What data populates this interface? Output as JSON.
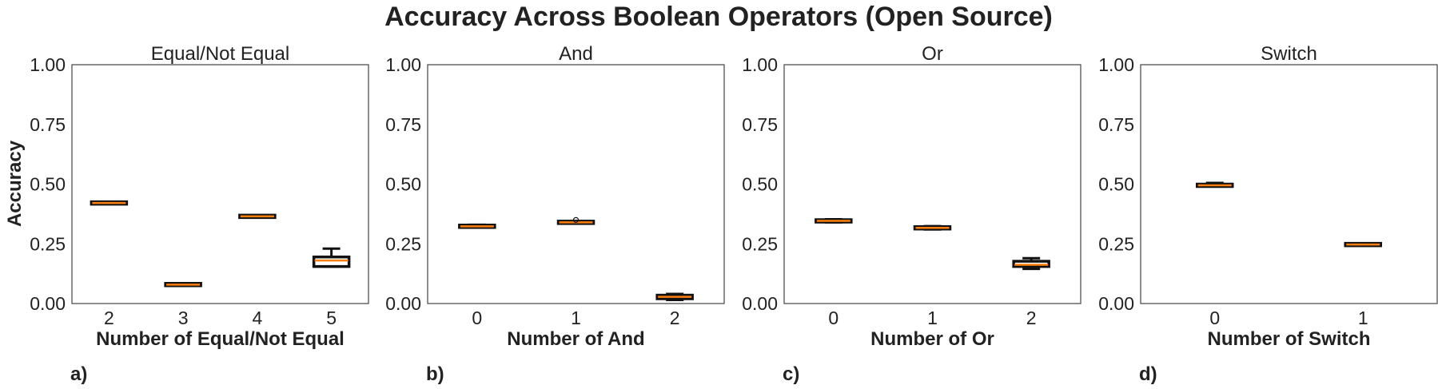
{
  "suptitle": "Accuracy Across Boolean Operators (Open Source)",
  "ylabel": "Accuracy",
  "colors": {
    "box": "#111111",
    "median": "#ff7f0e",
    "frame": "#444444"
  },
  "chart_data": [
    {
      "type": "box",
      "panel_label": "a)",
      "title": "Equal/Not Equal",
      "xlabel": "Number of Equal/Not Equal",
      "ylim": [
        0,
        1
      ],
      "yticks": [
        "0.00",
        "0.25",
        "0.50",
        "0.75",
        "1.00"
      ],
      "categories": [
        "2",
        "3",
        "4",
        "5"
      ],
      "boxes": [
        {
          "whislo": 0.418,
          "q1": 0.419,
          "med": 0.421,
          "q3": 0.423,
          "whishi": 0.425,
          "fliers": []
        },
        {
          "whislo": 0.075,
          "q1": 0.077,
          "med": 0.079,
          "q3": 0.082,
          "whishi": 0.085,
          "fliers": []
        },
        {
          "whislo": 0.362,
          "q1": 0.363,
          "med": 0.365,
          "q3": 0.367,
          "whishi": 0.369,
          "fliers": []
        },
        {
          "whislo": 0.155,
          "q1": 0.155,
          "med": 0.18,
          "q3": 0.195,
          "whishi": 0.23,
          "fliers": []
        }
      ]
    },
    {
      "type": "box",
      "panel_label": "b)",
      "title": "And",
      "xlabel": "Number of And",
      "ylim": [
        0,
        1
      ],
      "yticks": [
        "0.00",
        "0.25",
        "0.50",
        "0.75",
        "1.00"
      ],
      "categories": [
        "0",
        "1",
        "2"
      ],
      "boxes": [
        {
          "whislo": 0.318,
          "q1": 0.32,
          "med": 0.323,
          "q3": 0.327,
          "whishi": 0.33,
          "fliers": []
        },
        {
          "whislo": 0.337,
          "q1": 0.338,
          "med": 0.34,
          "q3": 0.342,
          "whishi": 0.344,
          "fliers": [
            0.35
          ]
        },
        {
          "whislo": 0.015,
          "q1": 0.02,
          "med": 0.028,
          "q3": 0.035,
          "whishi": 0.04,
          "fliers": []
        }
      ]
    },
    {
      "type": "box",
      "panel_label": "c)",
      "title": "Or",
      "xlabel": "Number of Or",
      "ylim": [
        0,
        1
      ],
      "yticks": [
        "0.00",
        "0.25",
        "0.50",
        "0.75",
        "1.00"
      ],
      "categories": [
        "0",
        "1",
        "2"
      ],
      "boxes": [
        {
          "whislo": 0.34,
          "q1": 0.342,
          "med": 0.346,
          "q3": 0.35,
          "whishi": 0.353,
          "fliers": []
        },
        {
          "whislo": 0.31,
          "q1": 0.313,
          "med": 0.317,
          "q3": 0.321,
          "whishi": 0.324,
          "fliers": []
        },
        {
          "whislo": 0.145,
          "q1": 0.155,
          "med": 0.162,
          "q3": 0.177,
          "whishi": 0.19,
          "fliers": []
        }
      ]
    },
    {
      "type": "box",
      "panel_label": "d)",
      "title": "Switch",
      "xlabel": "Number of Switch",
      "ylim": [
        0,
        1
      ],
      "yticks": [
        "0.00",
        "0.25",
        "0.50",
        "0.75",
        "1.00"
      ],
      "categories": [
        "0",
        "1"
      ],
      "boxes": [
        {
          "whislo": 0.49,
          "q1": 0.491,
          "med": 0.495,
          "q3": 0.499,
          "whishi": 0.505,
          "fliers": []
        },
        {
          "whislo": 0.244,
          "q1": 0.245,
          "med": 0.247,
          "q3": 0.249,
          "whishi": 0.25,
          "fliers": []
        }
      ]
    }
  ]
}
